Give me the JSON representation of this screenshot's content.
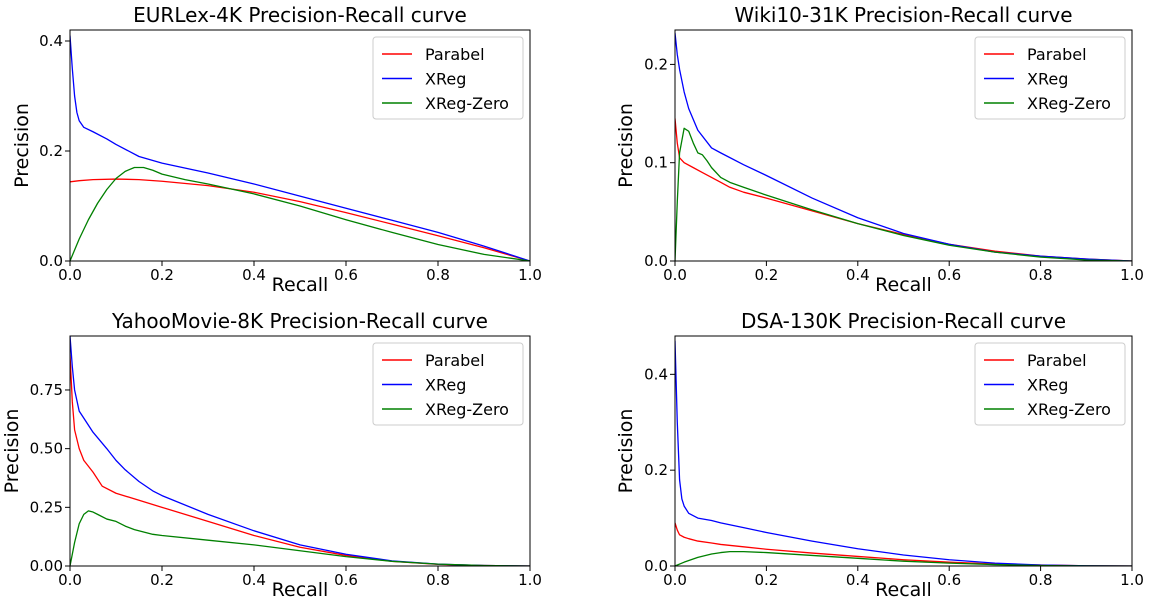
{
  "chart_data": [
    {
      "type": "line",
      "title": "EURLex-4K Precision-Recall curve",
      "xlabel": "Recall",
      "ylabel": "Precision",
      "xlim": [
        0,
        1
      ],
      "ylim": [
        0,
        0.42
      ],
      "xticks": [
        "0.0",
        "0.2",
        "0.4",
        "0.6",
        "0.8",
        "1.0"
      ],
      "xtick_values": [
        0,
        0.2,
        0.4,
        0.6,
        0.8,
        1.0
      ],
      "yticks": [
        "0.0",
        "0.2",
        "0.4"
      ],
      "ytick_values": [
        0,
        0.2,
        0.4
      ],
      "legend_position": "top-right",
      "series": [
        {
          "name": "Parabel",
          "color": "#ff0000",
          "x": [
            0,
            0.02,
            0.05,
            0.1,
            0.15,
            0.2,
            0.3,
            0.4,
            0.5,
            0.6,
            0.7,
            0.8,
            0.9,
            1.0
          ],
          "y": [
            0.144,
            0.146,
            0.148,
            0.149,
            0.148,
            0.145,
            0.137,
            0.125,
            0.108,
            0.088,
            0.067,
            0.046,
            0.024,
            0.0
          ]
        },
        {
          "name": "XReg",
          "color": "#0000ff",
          "x": [
            0,
            0.005,
            0.01,
            0.015,
            0.02,
            0.03,
            0.05,
            0.08,
            0.1,
            0.15,
            0.2,
            0.3,
            0.4,
            0.5,
            0.6,
            0.7,
            0.8,
            0.9,
            1.0
          ],
          "y": [
            0.41,
            0.35,
            0.3,
            0.27,
            0.255,
            0.243,
            0.235,
            0.222,
            0.212,
            0.19,
            0.178,
            0.16,
            0.14,
            0.118,
            0.096,
            0.074,
            0.052,
            0.027,
            0.0
          ]
        },
        {
          "name": "XReg-Zero",
          "color": "#008000",
          "x": [
            0,
            0.02,
            0.04,
            0.06,
            0.08,
            0.1,
            0.12,
            0.14,
            0.16,
            0.18,
            0.2,
            0.25,
            0.3,
            0.4,
            0.5,
            0.6,
            0.7,
            0.8,
            0.9,
            1.0
          ],
          "y": [
            0.0,
            0.04,
            0.075,
            0.105,
            0.13,
            0.15,
            0.163,
            0.17,
            0.17,
            0.165,
            0.158,
            0.148,
            0.14,
            0.122,
            0.1,
            0.075,
            0.052,
            0.03,
            0.012,
            0.0
          ]
        }
      ]
    },
    {
      "type": "line",
      "title": "Wiki10-31K Precision-Recall curve",
      "xlabel": "Recall",
      "ylabel": "Precision",
      "xlim": [
        0,
        1
      ],
      "ylim": [
        0,
        0.235
      ],
      "xticks": [
        "0.0",
        "0.2",
        "0.4",
        "0.6",
        "0.8",
        "1.0"
      ],
      "xtick_values": [
        0,
        0.2,
        0.4,
        0.6,
        0.8,
        1.0
      ],
      "yticks": [
        "0.0",
        "0.1",
        "0.2"
      ],
      "ytick_values": [
        0,
        0.1,
        0.2
      ],
      "legend_position": "top-right",
      "series": [
        {
          "name": "Parabel",
          "color": "#ff0000",
          "x": [
            0,
            0.005,
            0.01,
            0.02,
            0.04,
            0.06,
            0.08,
            0.1,
            0.12,
            0.15,
            0.2,
            0.3,
            0.4,
            0.5,
            0.6,
            0.7,
            0.8,
            0.9,
            1.0
          ],
          "y": [
            0.145,
            0.12,
            0.105,
            0.1,
            0.095,
            0.09,
            0.085,
            0.08,
            0.075,
            0.07,
            0.064,
            0.051,
            0.038,
            0.027,
            0.017,
            0.01,
            0.005,
            0.002,
            0.0
          ]
        },
        {
          "name": "XReg",
          "color": "#0000ff",
          "x": [
            0,
            0.005,
            0.01,
            0.02,
            0.03,
            0.05,
            0.08,
            0.1,
            0.15,
            0.2,
            0.3,
            0.4,
            0.5,
            0.6,
            0.7,
            0.8,
            0.9,
            1.0
          ],
          "y": [
            0.232,
            0.21,
            0.195,
            0.172,
            0.155,
            0.133,
            0.115,
            0.11,
            0.098,
            0.087,
            0.064,
            0.044,
            0.028,
            0.017,
            0.009,
            0.005,
            0.002,
            0.0
          ]
        },
        {
          "name": "XReg-Zero",
          "color": "#008000",
          "x": [
            0,
            0.005,
            0.01,
            0.02,
            0.03,
            0.04,
            0.05,
            0.06,
            0.07,
            0.08,
            0.1,
            0.12,
            0.15,
            0.2,
            0.3,
            0.4,
            0.5,
            0.6,
            0.7,
            0.8,
            0.9,
            1.0
          ],
          "y": [
            0.0,
            0.06,
            0.11,
            0.135,
            0.132,
            0.12,
            0.11,
            0.108,
            0.102,
            0.095,
            0.085,
            0.08,
            0.075,
            0.067,
            0.052,
            0.038,
            0.026,
            0.016,
            0.009,
            0.004,
            0.001,
            0.0
          ]
        }
      ]
    },
    {
      "type": "line",
      "title": "YahooMovie-8K Precision-Recall curve",
      "xlabel": "Recall",
      "ylabel": "Precision",
      "xlim": [
        0,
        1
      ],
      "ylim": [
        0,
        0.98
      ],
      "xticks": [
        "0.0",
        "0.2",
        "0.4",
        "0.6",
        "0.8",
        "1.0"
      ],
      "xtick_values": [
        0,
        0.2,
        0.4,
        0.6,
        0.8,
        1.0
      ],
      "yticks": [
        "0.00",
        "0.25",
        "0.50",
        "0.75"
      ],
      "ytick_values": [
        0,
        0.25,
        0.5,
        0.75
      ],
      "legend_position": "top-right",
      "series": [
        {
          "name": "Parabel",
          "color": "#ff0000",
          "x": [
            0,
            0.005,
            0.01,
            0.02,
            0.03,
            0.05,
            0.07,
            0.1,
            0.15,
            0.2,
            0.3,
            0.4,
            0.5,
            0.6,
            0.7,
            0.8,
            0.9,
            1.0
          ],
          "y": [
            0.9,
            0.7,
            0.58,
            0.5,
            0.45,
            0.4,
            0.34,
            0.31,
            0.28,
            0.25,
            0.19,
            0.13,
            0.08,
            0.045,
            0.02,
            0.007,
            0.002,
            0.0
          ]
        },
        {
          "name": "XReg",
          "color": "#0000ff",
          "x": [
            0,
            0.005,
            0.01,
            0.02,
            0.03,
            0.05,
            0.08,
            0.1,
            0.12,
            0.15,
            0.18,
            0.2,
            0.3,
            0.4,
            0.5,
            0.6,
            0.7,
            0.8,
            0.9,
            1.0
          ],
          "y": [
            0.98,
            0.85,
            0.75,
            0.66,
            0.63,
            0.57,
            0.5,
            0.45,
            0.41,
            0.36,
            0.32,
            0.3,
            0.22,
            0.15,
            0.09,
            0.05,
            0.022,
            0.008,
            0.002,
            0.0
          ]
        },
        {
          "name": "XReg-Zero",
          "color": "#008000",
          "x": [
            0,
            0.01,
            0.02,
            0.03,
            0.04,
            0.05,
            0.06,
            0.08,
            0.1,
            0.12,
            0.14,
            0.16,
            0.18,
            0.2,
            0.3,
            0.4,
            0.5,
            0.6,
            0.7,
            0.8,
            0.9,
            1.0
          ],
          "y": [
            0.0,
            0.1,
            0.18,
            0.22,
            0.235,
            0.23,
            0.22,
            0.2,
            0.19,
            0.17,
            0.155,
            0.145,
            0.135,
            0.13,
            0.11,
            0.09,
            0.065,
            0.04,
            0.02,
            0.008,
            0.002,
            0.0
          ]
        }
      ]
    },
    {
      "type": "line",
      "title": "DSA-130K Precision-Recall curve",
      "xlabel": "Recall",
      "ylabel": "Precision",
      "xlim": [
        0,
        1
      ],
      "ylim": [
        0,
        0.48
      ],
      "xticks": [
        "0.0",
        "0.2",
        "0.4",
        "0.6",
        "0.8",
        "1.0"
      ],
      "xtick_values": [
        0,
        0.2,
        0.4,
        0.6,
        0.8,
        1.0
      ],
      "yticks": [
        "0.0",
        "0.2",
        "0.4"
      ],
      "ytick_values": [
        0,
        0.2,
        0.4
      ],
      "legend_position": "top-right",
      "series": [
        {
          "name": "Parabel",
          "color": "#ff0000",
          "x": [
            0,
            0.005,
            0.01,
            0.02,
            0.03,
            0.05,
            0.08,
            0.1,
            0.15,
            0.2,
            0.3,
            0.4,
            0.5,
            0.6,
            0.7,
            0.8,
            0.9,
            1.0
          ],
          "y": [
            0.09,
            0.075,
            0.065,
            0.06,
            0.057,
            0.052,
            0.048,
            0.045,
            0.04,
            0.035,
            0.027,
            0.02,
            0.013,
            0.008,
            0.004,
            0.002,
            0.0005,
            0.0
          ]
        },
        {
          "name": "XReg",
          "color": "#0000ff",
          "x": [
            0,
            0.005,
            0.01,
            0.015,
            0.02,
            0.03,
            0.05,
            0.08,
            0.1,
            0.15,
            0.2,
            0.3,
            0.4,
            0.5,
            0.6,
            0.7,
            0.8,
            0.9,
            1.0
          ],
          "y": [
            0.47,
            0.3,
            0.18,
            0.14,
            0.125,
            0.11,
            0.1,
            0.095,
            0.09,
            0.08,
            0.07,
            0.052,
            0.036,
            0.023,
            0.013,
            0.006,
            0.002,
            0.0005,
            0.0
          ]
        },
        {
          "name": "XReg-Zero",
          "color": "#008000",
          "x": [
            0,
            0.02,
            0.05,
            0.08,
            0.1,
            0.12,
            0.15,
            0.2,
            0.3,
            0.4,
            0.5,
            0.6,
            0.7,
            0.8,
            0.9,
            1.0
          ],
          "y": [
            0.0,
            0.008,
            0.018,
            0.025,
            0.028,
            0.03,
            0.03,
            0.028,
            0.022,
            0.016,
            0.01,
            0.006,
            0.003,
            0.001,
            0.0003,
            0.0
          ]
        }
      ]
    }
  ]
}
